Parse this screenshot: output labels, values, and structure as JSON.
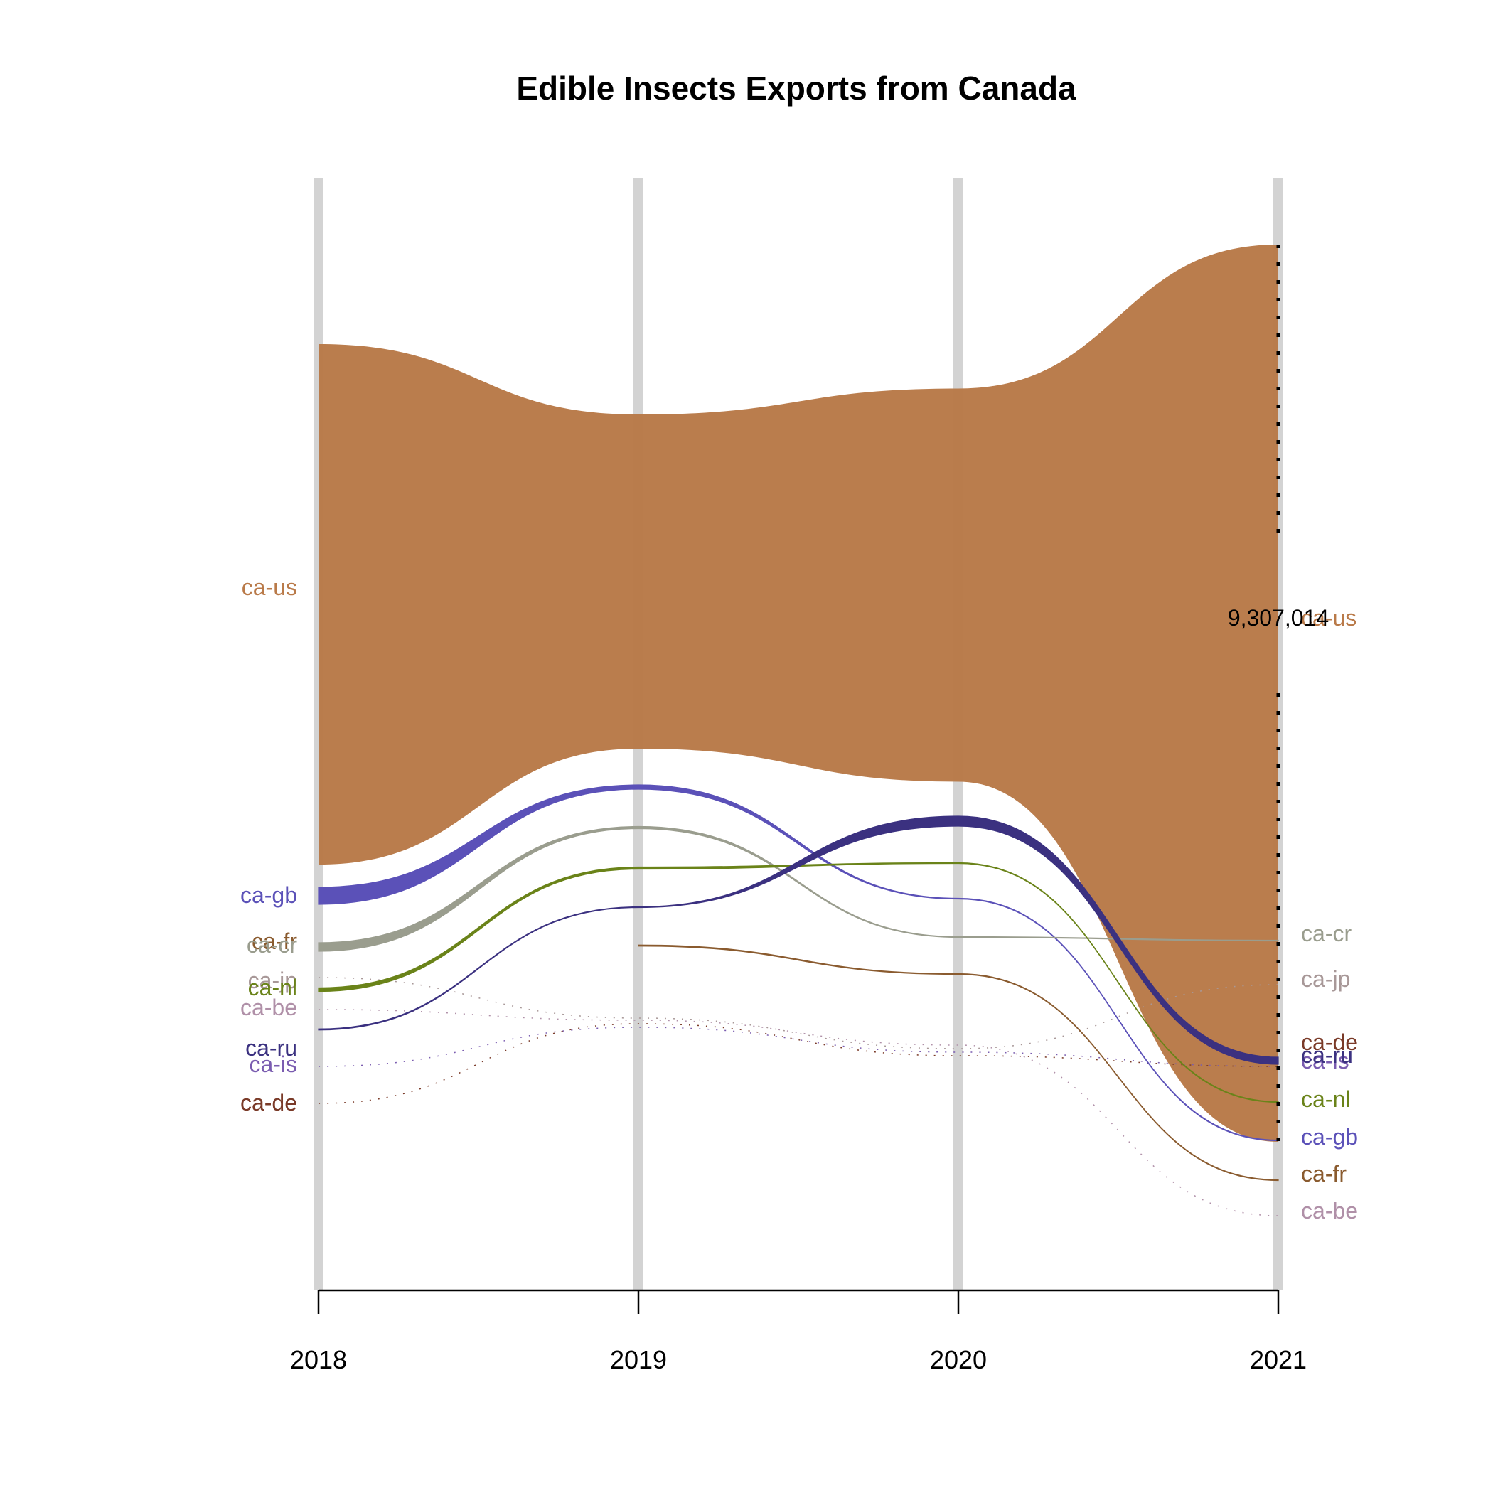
{
  "chart_data": {
    "type": "area",
    "subtype": "bump-chart",
    "title": "Edible Insects Exports from Canada",
    "xlabel": "",
    "ylabel": "",
    "x": [
      "2018",
      "2019",
      "2020",
      "2021"
    ],
    "grid": "vertical bars at each year",
    "annotation": {
      "series": "ca-us",
      "x": "2021",
      "text": "9,307,014"
    },
    "series": [
      {
        "name": "ca-us",
        "color": "#b97a49",
        "values": [
          6800000,
          4350000,
          5100000,
          9307014
        ],
        "ranks": [
          1,
          1,
          1,
          1
        ]
      },
      {
        "name": "ca-gb",
        "color": "#5b51b8",
        "values": [
          240000,
          50000,
          1000,
          10000
        ],
        "ranks": [
          2,
          2,
          6,
          6
        ]
      },
      {
        "name": "ca-cr",
        "color": "#9a9d8e",
        "values": [
          120000,
          50000,
          3000,
          0
        ],
        "ranks": [
          3,
          3,
          7,
          2
        ]
      },
      {
        "name": "ca-nl",
        "color": "#6a8319",
        "values": [
          30000,
          20000,
          5000,
          10000
        ],
        "ranks": [
          5,
          4,
          3,
          5
        ]
      },
      {
        "name": "ca-ru",
        "color": "#3b3180",
        "values": [
          5000,
          3000,
          120000,
          80000
        ],
        "ranks": [
          7,
          5,
          2,
          4
        ]
      },
      {
        "name": "ca-fr",
        "color": "#8a5b2f",
        "values": [
          null,
          5000,
          1000,
          1000
        ],
        "ranks": [
          3,
          6,
          8,
          7
        ]
      },
      {
        "name": "ca-jp",
        "color": "#a89898",
        "values": [
          1000,
          1000,
          1000,
          1000
        ],
        "ranks": [
          5,
          7,
          9,
          3
        ]
      },
      {
        "name": "ca-be",
        "color": "#b090a8",
        "values": [
          1000,
          1000,
          1000,
          1000
        ],
        "ranks": [
          6,
          8,
          10,
          8
        ]
      },
      {
        "name": "ca-is",
        "color": "#7a5cb0",
        "values": [
          1000,
          1000,
          1000,
          1000
        ],
        "ranks": [
          8,
          9,
          11,
          4
        ]
      },
      {
        "name": "ca-de",
        "color": "#7a3a28",
        "values": [
          1000,
          1000,
          1000,
          1000
        ],
        "ranks": [
          9,
          10,
          12,
          4
        ]
      }
    ],
    "left_labels": [
      {
        "text": "ca-us",
        "color": "#b97a49"
      },
      {
        "text": "ca-gb",
        "color": "#5b51b8"
      },
      {
        "text": "ca-fr",
        "color": "#8a5b2f"
      },
      {
        "text": "ca-cr",
        "color": "#9a9d8e"
      },
      {
        "text": "ca-jp",
        "color": "#a89898"
      },
      {
        "text": "ca-nl",
        "color": "#6a8319"
      },
      {
        "text": "ca-be",
        "color": "#b090a8"
      },
      {
        "text": "ca-ru",
        "color": "#3b3180"
      },
      {
        "text": "ca-is",
        "color": "#7a5cb0"
      },
      {
        "text": "ca-de",
        "color": "#7a3a28"
      }
    ],
    "right_labels": [
      {
        "text": "ca-us",
        "color": "#b97a49"
      },
      {
        "text": "ca-cr",
        "color": "#9a9d8e"
      },
      {
        "text": "ca-jp",
        "color": "#a89898"
      },
      {
        "text": "ca-de",
        "color": "#7a3a28"
      },
      {
        "text": "ca-is",
        "color": "#7a5cb0"
      },
      {
        "text": "ca-ru",
        "color": "#3b3180"
      },
      {
        "text": "ca-nl",
        "color": "#6a8319"
      },
      {
        "text": "ca-gb",
        "color": "#5b51b8"
      },
      {
        "text": "ca-fr",
        "color": "#8a5b2f"
      },
      {
        "text": "ca-be",
        "color": "#b090a8"
      }
    ]
  }
}
